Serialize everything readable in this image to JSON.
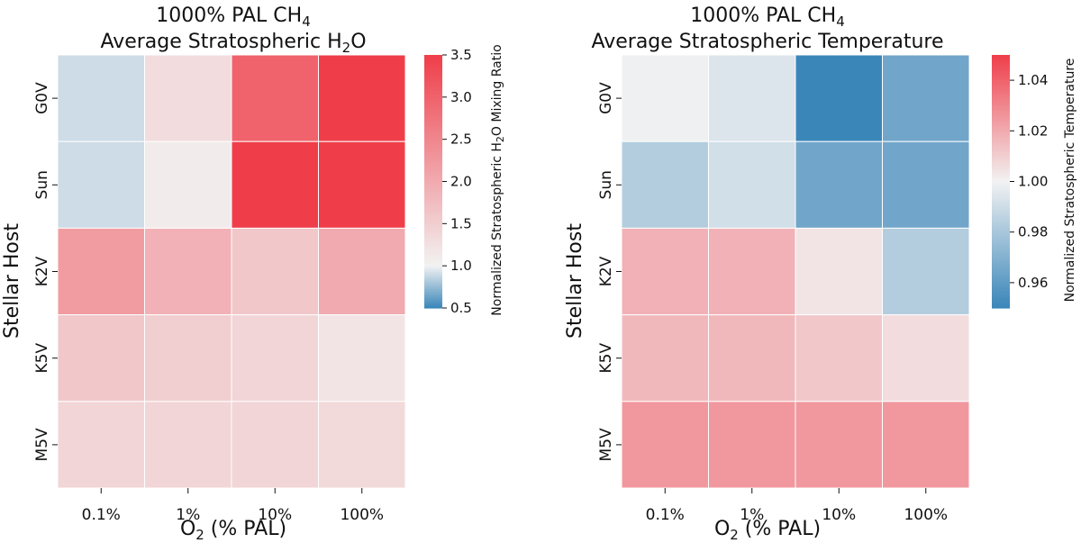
{
  "chart_data": [
    {
      "type": "heatmap",
      "title_line1": "1000% PAL CH",
      "title_line1_sub": "4",
      "title_line2": "Average Stratospheric H",
      "title_line2_sub": "2",
      "title_line2_tail": "O",
      "xlabel_main": "O",
      "xlabel_sub": "2",
      "xlabel_tail": " (% PAL)",
      "ylabel": "Stellar Host",
      "x_categories": [
        "0.1%",
        "1%",
        "10%",
        "100%"
      ],
      "y_categories": [
        "G0V",
        "Sun",
        "K2V",
        "K5V",
        "M5V"
      ],
      "values": [
        [
          0.9,
          1.3,
          3.0,
          3.5
        ],
        [
          0.9,
          1.1,
          3.5,
          3.5
        ],
        [
          2.2,
          1.9,
          1.6,
          2.0
        ],
        [
          1.6,
          1.5,
          1.4,
          1.2
        ],
        [
          1.4,
          1.4,
          1.4,
          1.35
        ]
      ],
      "colorbar": {
        "range": [
          0.5,
          3.5
        ],
        "center": 1.0,
        "ticks": [
          "0.5",
          "1.0",
          "1.5",
          "2.0",
          "2.5",
          "3.0",
          "3.5"
        ],
        "label_pre": "Normalized Stratospheric H",
        "label_sub": "2",
        "label_post": "O Mixing Ratio"
      }
    },
    {
      "type": "heatmap",
      "title_line1": "1000% PAL CH",
      "title_line1_sub": "4",
      "title_line2": "Average Stratospheric Temperature",
      "title_line2_sub": "",
      "title_line2_tail": "",
      "xlabel_main": "O",
      "xlabel_sub": "2",
      "xlabel_tail": " (% PAL)",
      "ylabel": "Stellar Host",
      "x_categories": [
        "0.1%",
        "1%",
        "10%",
        "100%"
      ],
      "y_categories": [
        "G0V",
        "Sun",
        "K2V",
        "K5V",
        "M5V"
      ],
      "values": [
        [
          0.999,
          0.994,
          0.95,
          0.965
        ],
        [
          0.983,
          0.991,
          0.965,
          0.965
        ],
        [
          1.018,
          1.018,
          1.004,
          0.983
        ],
        [
          1.016,
          1.016,
          1.012,
          1.006
        ],
        [
          1.025,
          1.025,
          1.025,
          1.025
        ]
      ],
      "colorbar": {
        "range": [
          0.95,
          1.05
        ],
        "center": 1.0,
        "ticks": [
          "0.96",
          "0.98",
          "1.00",
          "1.02",
          "1.04"
        ],
        "tick_values": [
          0.96,
          0.98,
          1.0,
          1.02,
          1.04
        ],
        "label_pre": "Normalized Stratospheric Temperature",
        "label_sub": "",
        "label_post": ""
      }
    }
  ],
  "colors": {
    "low": "#3a86b9",
    "mid": "#f2f2f2",
    "high": "#ef3e4a",
    "grid_line": "#ffffff",
    "text": "#111111"
  }
}
